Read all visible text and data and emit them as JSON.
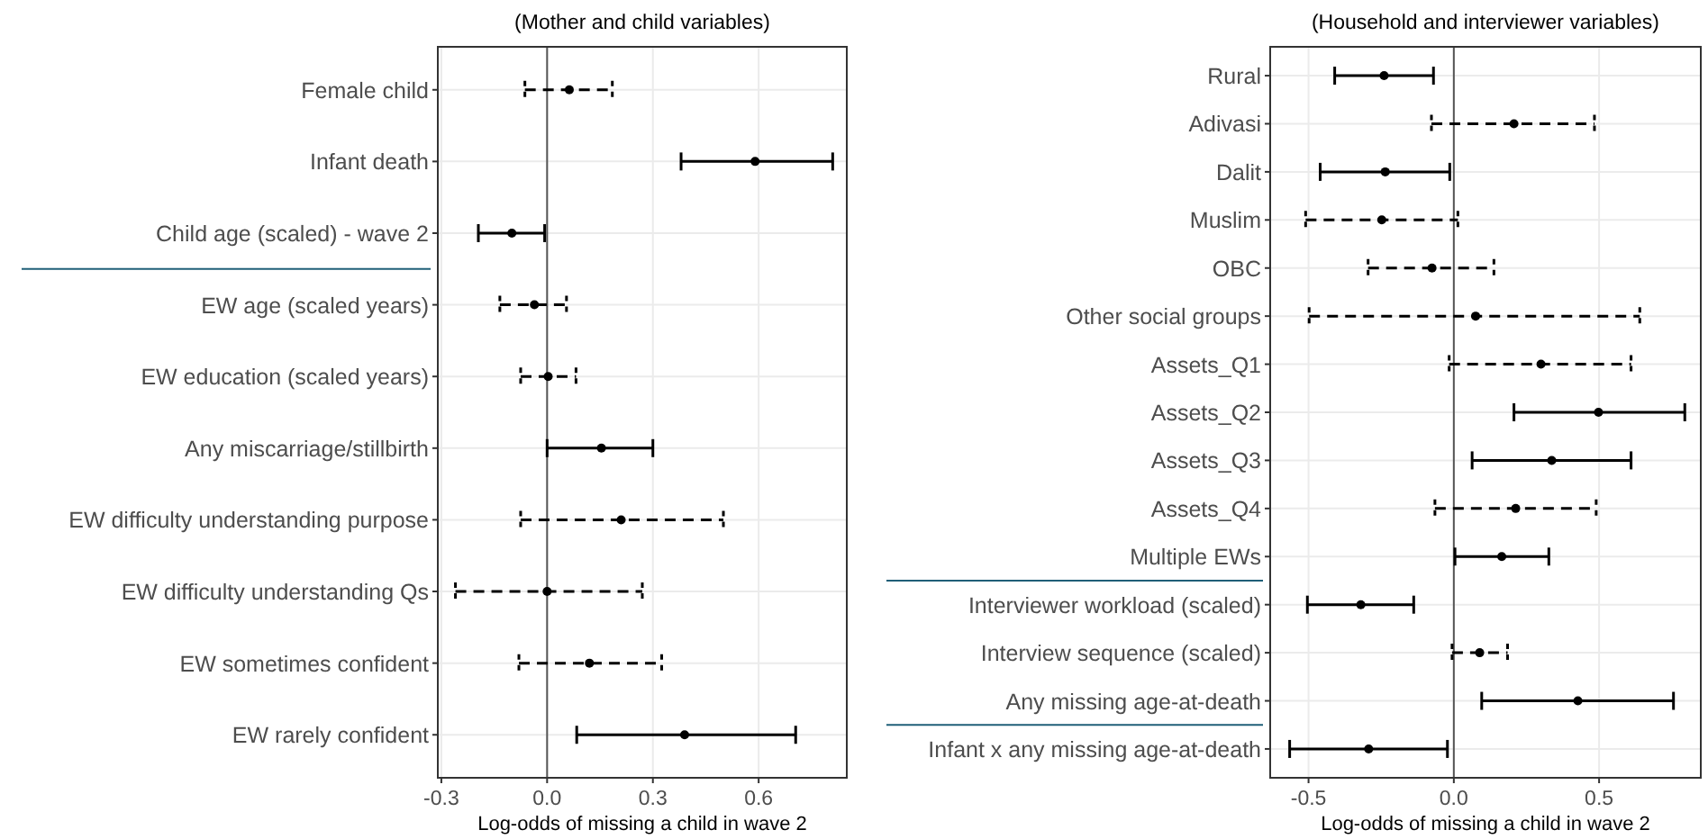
{
  "chart_data": [
    {
      "type": "scatter",
      "orientation": "horizontal",
      "title": "(Mother and child variables)",
      "xlabel": "Log-odds of missing a child in wave 2",
      "categories": [
        "Female child",
        "Infant death",
        "Child age (scaled) - wave 2",
        "EW age (scaled years)",
        "EW education (scaled years)",
        "Any miscarriage/stillbirth",
        "EW difficulty understanding purpose",
        "EW difficulty understanding Qs",
        "EW sometimes confident",
        "EW rarely confident"
      ],
      "series": [
        {
          "color": "#000000",
          "line_style": "solid",
          "values": [
            null,
            0.59,
            -0.1,
            null,
            null,
            0.154,
            null,
            null,
            null,
            0.39
          ],
          "errors": [
            null,
            [
              0.38,
              0.81
            ],
            [
              -0.195,
              -0.007
            ],
            null,
            null,
            [
              0.0,
              0.3
            ],
            null,
            null,
            null,
            [
              0.084,
              0.705
            ]
          ]
        },
        {
          "color": "#000000",
          "line_style": "dashed",
          "values": [
            0.063,
            null,
            null,
            -0.036,
            0.003,
            null,
            0.21,
            0.0,
            0.12,
            null
          ],
          "errors": [
            [
              -0.063,
              0.185
            ],
            null,
            null,
            [
              -0.134,
              0.055
            ],
            [
              -0.075,
              0.082
            ],
            null,
            [
              -0.075,
              0.5
            ],
            [
              -0.26,
              0.27
            ],
            [
              -0.08,
              0.325
            ],
            null
          ]
        }
      ],
      "xlim": [
        -0.31,
        0.85
      ],
      "xticks": [
        {
          "value": -0.3,
          "label": "-0.3"
        },
        {
          "value": 0,
          "label": "0.0"
        },
        {
          "value": 0.3,
          "label": "0.3"
        },
        {
          "value": 0.6,
          "label": "0.6"
        }
      ],
      "ref_lines": [
        {
          "axis": "x",
          "value": 0,
          "color": "#555555"
        }
      ],
      "grid": true,
      "marker": "circle"
    },
    {
      "type": "scatter",
      "orientation": "horizontal",
      "title": "(Household and interviewer variables)",
      "xlabel": "Log-odds of missing a child in wave 2",
      "categories": [
        "Rural",
        "Adivasi",
        "Dalit",
        "Muslim",
        "OBC",
        "Other social groups",
        "Assets_Q1",
        "Assets_Q2",
        "Assets_Q3",
        "Assets_Q4",
        "Multiple EWs",
        "Interviewer workload (scaled)",
        "Interview sequence (scaled)",
        "Any missing age-at-death",
        "Infant x any missing age-at-death"
      ],
      "series": [
        {
          "color": "#000000",
          "line_style": "solid",
          "values": [
            -0.24,
            null,
            -0.236,
            null,
            null,
            null,
            null,
            0.498,
            0.337,
            null,
            0.165,
            -0.32,
            null,
            0.427,
            -0.293
          ],
          "errors": [
            [
              -0.41,
              -0.07
            ],
            null,
            [
              -0.46,
              -0.014
            ],
            null,
            null,
            null,
            null,
            [
              0.207,
              0.795
            ],
            [
              0.063,
              0.61
            ],
            null,
            [
              0.004,
              0.327
            ],
            [
              -0.504,
              -0.138
            ],
            null,
            [
              0.096,
              0.756
            ],
            [
              -0.565,
              -0.022
            ]
          ]
        },
        {
          "color": "#000000",
          "line_style": "dashed",
          "values": [
            null,
            0.207,
            null,
            -0.248,
            -0.075,
            0.075,
            0.3,
            null,
            null,
            0.213,
            null,
            null,
            0.089,
            null,
            null
          ],
          "errors": [
            null,
            [
              -0.077,
              0.484
            ],
            null,
            [
              -0.51,
              0.014
            ],
            [
              -0.295,
              0.138
            ],
            [
              -0.498,
              0.64
            ],
            [
              -0.016,
              0.61
            ],
            null,
            null,
            [
              -0.065,
              0.49
            ],
            null,
            null,
            [
              -0.006,
              0.185
            ],
            null,
            null
          ]
        }
      ],
      "xlim": [
        -0.632,
        0.85
      ],
      "xticks": [
        {
          "value": -0.5,
          "label": "-0.5"
        },
        {
          "value": 0,
          "label": "0.0"
        },
        {
          "value": 0.5,
          "label": "0.5"
        }
      ],
      "ref_lines": [
        {
          "axis": "x",
          "value": 0,
          "color": "#555555"
        }
      ],
      "grid": true,
      "marker": "circle"
    }
  ]
}
